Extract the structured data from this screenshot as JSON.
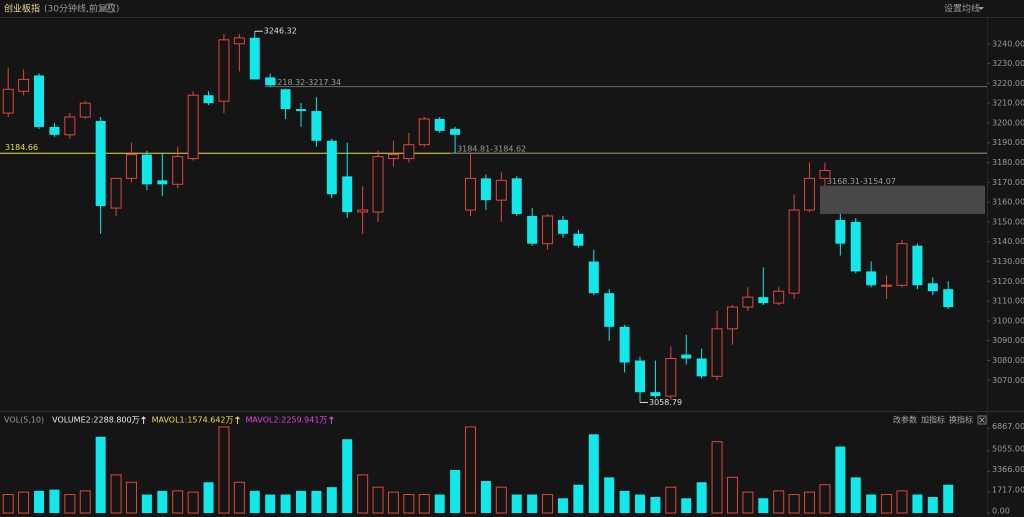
{
  "header": {
    "title": "创业板指",
    "subtitle": "(30分钟线,前复权)",
    "setting": "设置均线"
  },
  "chart_data": [
    {
      "type": "candlestick",
      "up_color": "#e0463e",
      "down_color": "#12e8ea",
      "hline_color": "#e6dc4a",
      "zone_color": "#5a5a5a",
      "open": [
        3205,
        3216,
        3224,
        3198,
        3194,
        3203,
        3201,
        3157,
        3172,
        3184,
        3171,
        3169,
        3182,
        3214,
        3211,
        3240,
        3243,
        3223,
        3217,
        3207,
        3206,
        3191,
        3173,
        3155,
        3155,
        3182,
        3182,
        3189,
        3202,
        3197,
        3156,
        3172,
        3161,
        3172,
        3153,
        3139,
        3151,
        3144,
        3130,
        3114,
        3097,
        3080,
        3064,
        3062,
        3083,
        3081,
        3072,
        3096,
        3107,
        3112,
        3109,
        3114,
        3156,
        3172,
        3151,
        3150,
        3125,
        3118,
        3118,
        3138,
        3119,
        3116
      ],
      "high": [
        3228,
        3227,
        3225,
        3200,
        3205,
        3211,
        3203,
        3172,
        3190,
        3186,
        3185,
        3188,
        3216,
        3216,
        3245,
        3245,
        3246.32,
        3225,
        3217.34,
        3210,
        3213,
        3192,
        3190,
        3168,
        3186,
        3191,
        3195,
        3203,
        3203,
        3198,
        3184.62,
        3174,
        3175,
        3173,
        3157,
        3154,
        3153,
        3146,
        3136,
        3116,
        3098,
        3082,
        3080,
        3087,
        3093,
        3086,
        3105,
        3108,
        3117,
        3127,
        3117,
        3164,
        3180,
        3180,
        3154.07,
        3152,
        3130,
        3123,
        3141,
        3139,
        3122,
        3120
      ],
      "low": [
        3203,
        3214,
        3197,
        3193,
        3192,
        3202,
        3144,
        3153,
        3170,
        3166,
        3163,
        3167,
        3181,
        3209,
        3205,
        3226,
        3222,
        3218.32,
        3202,
        3198,
        3188,
        3162,
        3152,
        3144,
        3150,
        3178,
        3180,
        3188,
        3195,
        3184.81,
        3153,
        3156,
        3150,
        3153,
        3138,
        3136,
        3142,
        3137,
        3113,
        3090,
        3074,
        3058.79,
        3061,
        3060,
        3078,
        3071,
        3070,
        3088,
        3105,
        3108,
        3108,
        3111,
        3155,
        3168.31,
        3133,
        3124,
        3117,
        3111,
        3117,
        3116,
        3113,
        3106
      ],
      "close": [
        3217,
        3222,
        3198,
        3194,
        3203,
        3210,
        3158,
        3172,
        3184,
        3169,
        3169,
        3183,
        3214,
        3210,
        3242,
        3243,
        3222,
        3219,
        3207,
        3206,
        3191,
        3164,
        3155,
        3156,
        3183,
        3184,
        3189,
        3202,
        3196,
        3194,
        3172,
        3161,
        3171,
        3154,
        3139,
        3153,
        3144,
        3138,
        3114,
        3097,
        3079,
        3064,
        3062,
        3081,
        3081,
        3072,
        3096,
        3107,
        3112,
        3109,
        3115,
        3156,
        3172,
        3176,
        3139,
        3125,
        3118,
        3118,
        3139,
        3118,
        3115,
        3107
      ],
      "hlines": [
        3184.66
      ],
      "zones": [
        {
          "high": 3218.32,
          "low": 3217.34,
          "label": "3218.32-3217.34"
        },
        {
          "high": 3184.81,
          "low": 3184.62,
          "label": "3184.81-3184.62"
        },
        {
          "high": 3168.31,
          "low": 3154.07,
          "label": "3168.31-3154.07"
        }
      ],
      "ylim": [
        3056,
        3252
      ],
      "yticks": [
        {
          "value": 3070,
          "label": "3070.00"
        },
        {
          "value": 3080,
          "label": "3080.00"
        },
        {
          "value": 3090,
          "label": "3090.00"
        },
        {
          "value": 3100,
          "label": "3100.00"
        },
        {
          "value": 3110,
          "label": "3110.00"
        },
        {
          "value": 3120,
          "label": "3120.00"
        },
        {
          "value": 3130,
          "label": "3130.00"
        },
        {
          "value": 3140,
          "label": "3140.00"
        },
        {
          "value": 3150,
          "label": "3150.00"
        },
        {
          "value": 3160,
          "label": "3160.00"
        },
        {
          "value": 3170,
          "label": "3170.00"
        },
        {
          "value": 3180,
          "label": "3180.00"
        },
        {
          "value": 3190,
          "label": "3190.00"
        },
        {
          "value": 3200,
          "label": "3200.00"
        },
        {
          "value": 3210,
          "label": "3210.00"
        },
        {
          "value": 3220,
          "label": "3220.00"
        },
        {
          "value": 3230,
          "label": "3230.00"
        },
        {
          "value": 3240,
          "label": "3240.00"
        }
      ]
    },
    {
      "type": "bar",
      "legend": [
        {
          "text": "VOL(5,10)",
          "color": "#9a9a9a"
        },
        {
          "text": "VOLUME2:2288.800万",
          "color": "#e8e8e8"
        },
        {
          "text": "MAVOL1:1574.642万",
          "color": "#e6dc4a"
        },
        {
          "text": "MAVOL2:2259.941万",
          "color": "#e040e0"
        }
      ],
      "tools": [
        "改参数",
        "加指标",
        "换指标"
      ],
      "values": [
        1500,
        1700,
        1800,
        1900,
        1500,
        1800,
        6200,
        3100,
        2500,
        1500,
        1800,
        1800,
        1700,
        2500,
        7000,
        2500,
        1800,
        1500,
        1500,
        1800,
        1800,
        2100,
        6000,
        3100,
        2100,
        1700,
        1500,
        1500,
        1500,
        3500,
        7000,
        2600,
        2100,
        1500,
        1500,
        1500,
        1200,
        2300,
        6400,
        2900,
        1800,
        1500,
        1300,
        2100,
        1200,
        2500,
        5800,
        2900,
        1700,
        1200,
        1800,
        1500,
        1700,
        2300,
        5400,
        2900,
        1500,
        1500,
        1800,
        1500,
        1300,
        2300
      ],
      "ylim": [
        0,
        7400
      ],
      "yticks": [
        {
          "value": 0,
          "label": "0.00"
        },
        {
          "value": 1717,
          "label": "1717.00"
        },
        {
          "value": 3366,
          "label": "3366.00"
        },
        {
          "value": 5055,
          "label": "5055.00"
        },
        {
          "value": 6867,
          "label": "6867.00"
        }
      ]
    }
  ]
}
